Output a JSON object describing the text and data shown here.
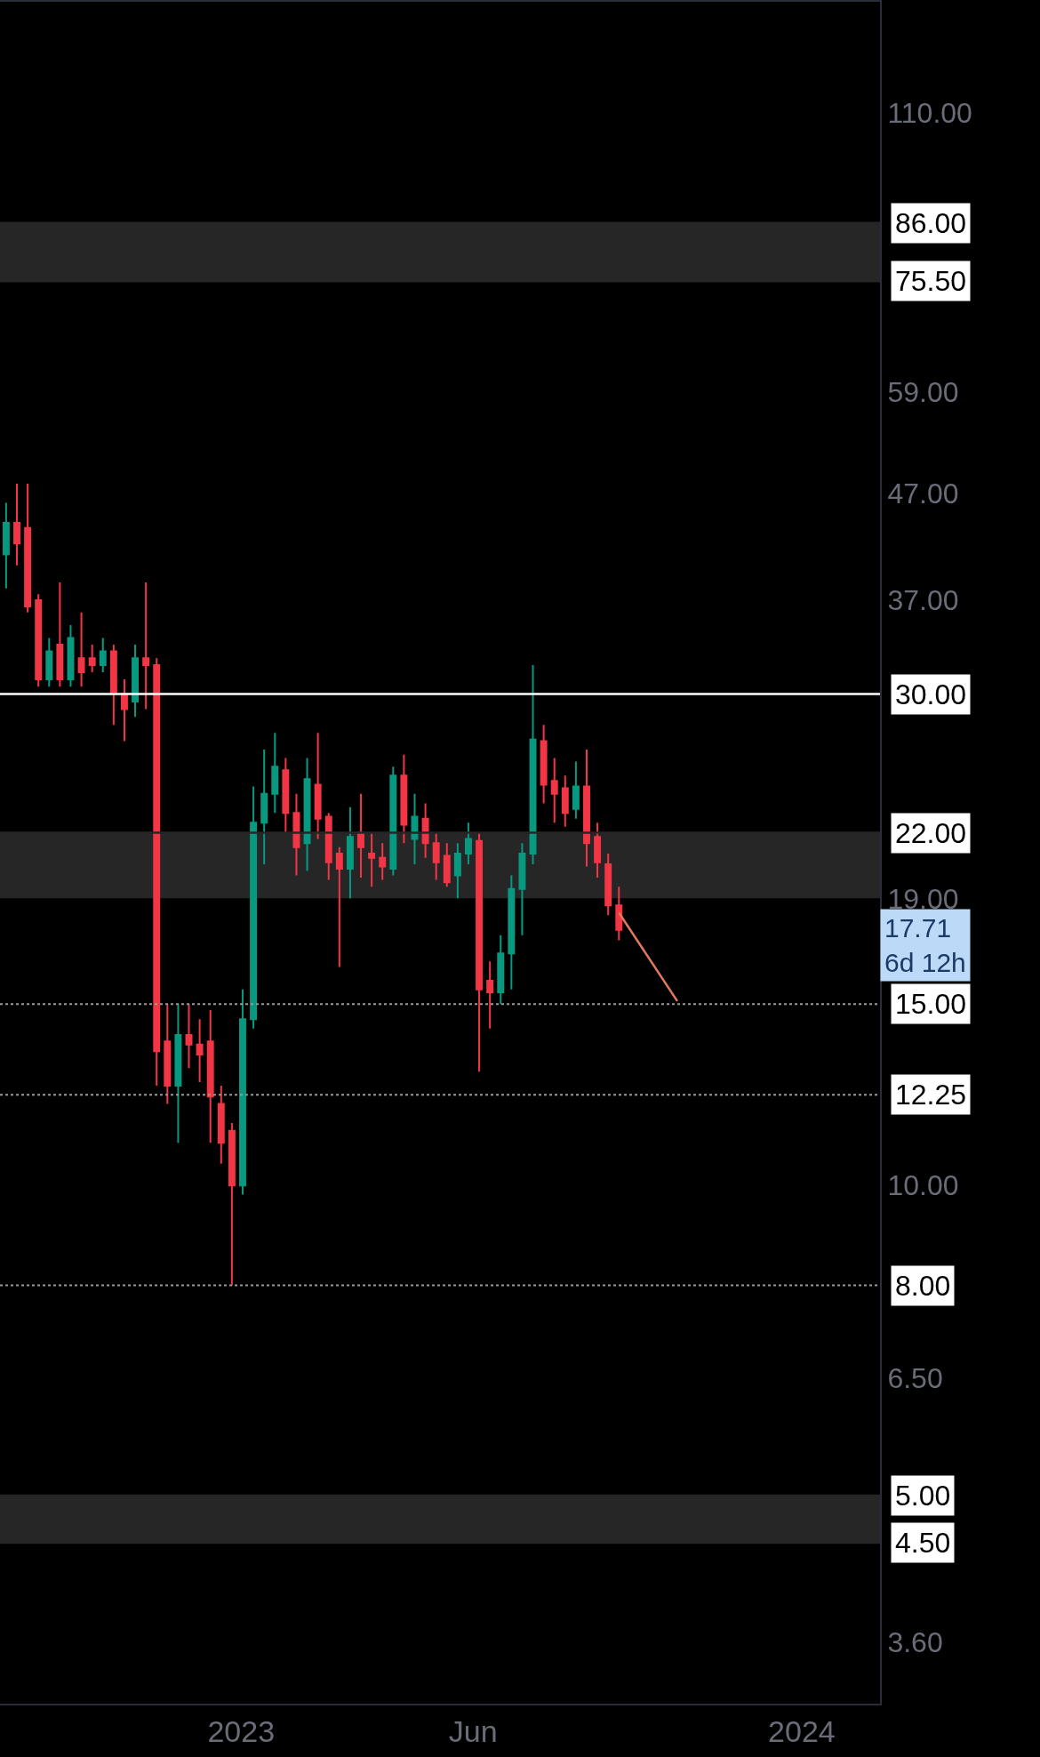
{
  "chart_data": {
    "type": "candlestick",
    "x": [
      "2022-08-01",
      "2022-08-08",
      "2022-08-15",
      "2022-08-22",
      "2022-08-29",
      "2022-09-05",
      "2022-09-12",
      "2022-09-19",
      "2022-09-26",
      "2022-10-03",
      "2022-10-10",
      "2022-10-17",
      "2022-10-24",
      "2022-10-31",
      "2022-11-07",
      "2022-11-14",
      "2022-11-21",
      "2022-11-28",
      "2022-12-05",
      "2022-12-12",
      "2022-12-19",
      "2022-12-26",
      "2023-01-02",
      "2023-01-09",
      "2023-01-16",
      "2023-01-23",
      "2023-01-30",
      "2023-02-06",
      "2023-02-13",
      "2023-02-20",
      "2023-02-27",
      "2023-03-06",
      "2023-03-13",
      "2023-03-20",
      "2023-03-27",
      "2023-04-03",
      "2023-04-10",
      "2023-04-17",
      "2023-04-24",
      "2023-05-01",
      "2023-05-08",
      "2023-05-15",
      "2023-05-22",
      "2023-05-29",
      "2023-06-05",
      "2023-06-12",
      "2023-06-19",
      "2023-06-26",
      "2023-07-03",
      "2023-07-10",
      "2023-07-17",
      "2023-07-24",
      "2023-07-31",
      "2023-08-07",
      "2023-08-14",
      "2023-08-21",
      "2023-08-28",
      "2023-09-04"
    ],
    "ohlc": [
      [
        41,
        46,
        38,
        44
      ],
      [
        44,
        48,
        40,
        42
      ],
      [
        43.5,
        48,
        36,
        36.5
      ],
      [
        37,
        37.5,
        30.5,
        31
      ],
      [
        31,
        34,
        30.5,
        33
      ],
      [
        33.5,
        38.5,
        30.5,
        31
      ],
      [
        31,
        35,
        30.5,
        34
      ],
      [
        32.5,
        36,
        30.5,
        31.5
      ],
      [
        32.5,
        33.5,
        31.5,
        32
      ],
      [
        32,
        34,
        31.5,
        33
      ],
      [
        33,
        33.5,
        28,
        30
      ],
      [
        30,
        31,
        27,
        29
      ],
      [
        29.5,
        33.5,
        28.5,
        32.5
      ],
      [
        32.5,
        38.5,
        29,
        32
      ],
      [
        32,
        32.5,
        12.5,
        13.5
      ],
      [
        13.8,
        15,
        12,
        12.5
      ],
      [
        12.5,
        15,
        11,
        14
      ],
      [
        14,
        15,
        13,
        13.7
      ],
      [
        13.7,
        14.5,
        12.6,
        13.4
      ],
      [
        13.8,
        14.8,
        11,
        12.2
      ],
      [
        12,
        12.5,
        10.5,
        11
      ],
      [
        11.3,
        11.5,
        8,
        10
      ],
      [
        10,
        15.5,
        9.8,
        14.5
      ],
      [
        14.5,
        24.4,
        14.2,
        22.5
      ],
      [
        22.5,
        26.5,
        20.5,
        24
      ],
      [
        24,
        27.5,
        23,
        25.5
      ],
      [
        25.3,
        26,
        22,
        23
      ],
      [
        23,
        24,
        20,
        21.3
      ],
      [
        21.5,
        26,
        20.2,
        24.8
      ],
      [
        24.5,
        27.5,
        21.7,
        22.7
      ],
      [
        22.8,
        23,
        19.8,
        20.6
      ],
      [
        21,
        21.3,
        16.3,
        20.3
      ],
      [
        20.3,
        23.3,
        19,
        21.8
      ],
      [
        22,
        24,
        19.9,
        21.3
      ],
      [
        21,
        22,
        19.5,
        20.8
      ],
      [
        20.8,
        21.5,
        19.8,
        20.4
      ],
      [
        20.3,
        25.5,
        20,
        25
      ],
      [
        25,
        26.2,
        21.5,
        22.4
      ],
      [
        21.7,
        24,
        20.5,
        22.8
      ],
      [
        22.7,
        23.5,
        20.8,
        21.5
      ],
      [
        21.5,
        22,
        19.8,
        20.6
      ],
      [
        20.9,
        21.5,
        19.5,
        19.7
      ],
      [
        20,
        21.5,
        19,
        21
      ],
      [
        21,
        22.5,
        20.5,
        21.7
      ],
      [
        21.6,
        22,
        12.9,
        15.5
      ],
      [
        15.8,
        16.5,
        14.2,
        15.4
      ],
      [
        15.4,
        17.5,
        15,
        16.8
      ],
      [
        16.8,
        20,
        15.5,
        19.4
      ],
      [
        19.4,
        21.5,
        17.5,
        21
      ],
      [
        21,
        32,
        20.5,
        27.1
      ],
      [
        27,
        28,
        23.5,
        24.5
      ],
      [
        24.7,
        26,
        22.5,
        24
      ],
      [
        24.3,
        25,
        22.3,
        23
      ],
      [
        23.2,
        25.8,
        22.7,
        24.4
      ],
      [
        24.4,
        26.5,
        20.4,
        21.5
      ],
      [
        21.8,
        22.5,
        19.9,
        20.6
      ],
      [
        20.5,
        21,
        18.3,
        18.7
      ],
      [
        18.7,
        19.5,
        17.3,
        17.71
      ]
    ],
    "series": [
      {
        "type": "line",
        "color": "#e07b5a",
        "x": [
          "2023-09-04",
          "2023-10-12"
        ],
        "values": [
          18.4,
          15.1
        ]
      }
    ],
    "log": true,
    "grid": false,
    "xlim": [
      "2022-07-28",
      "2024-02-21"
    ],
    "xticks": [
      {
        "value": "2023-01-01",
        "label": "2023"
      },
      {
        "value": "2023-06-01",
        "label": "Jun"
      },
      {
        "value": "2024-01-01",
        "label": "2024"
      }
    ],
    "ylim": [
      3.14,
      141
    ],
    "yticks": [
      {
        "value": 110,
        "label": "110.00"
      },
      {
        "value": 59,
        "label": "59.00"
      },
      {
        "value": 47,
        "label": "47.00"
      },
      {
        "value": 37,
        "label": "37.00"
      },
      {
        "value": 19,
        "label": "19.00"
      },
      {
        "value": 10,
        "label": "10.00"
      },
      {
        "value": 6.5,
        "label": "6.50"
      },
      {
        "value": 3.6,
        "label": "3.60"
      }
    ],
    "ref_lines": [
      {
        "axis": "y",
        "value": 30,
        "label": "30.00",
        "color": "#ffffff",
        "line_style": "solid"
      },
      {
        "axis": "y",
        "value": 15,
        "label": "15.00",
        "color": "#9a9a9a",
        "line_style": "dotted"
      },
      {
        "axis": "y",
        "value": 12.25,
        "label": "12.25",
        "color": "#9a9a9a",
        "line_style": "dotted"
      },
      {
        "axis": "y",
        "value": 8,
        "label": "8.00",
        "color": "#9a9a9a",
        "line_style": "dotted"
      },
      {
        "axis": "y",
        "value": 86,
        "label": "86.00",
        "color": "#262626",
        "line_style": "solid"
      },
      {
        "axis": "y",
        "value": 75.5,
        "label": "75.50",
        "color": "#262626",
        "line_style": "solid"
      },
      {
        "axis": "y",
        "value": 22,
        "label": "22.00",
        "color": "#262626",
        "line_style": "solid"
      },
      {
        "axis": "y",
        "value": 5,
        "label": "5.00",
        "color": "#262626",
        "line_style": "solid"
      },
      {
        "axis": "y",
        "value": 4.5,
        "label": "4.50",
        "color": "#262626",
        "line_style": "solid"
      }
    ],
    "bands": [
      {
        "axis": "y",
        "from": 75.5,
        "to": 86,
        "color": "#262626"
      },
      {
        "axis": "y",
        "from": 19,
        "to": 22,
        "color": "#262626"
      },
      {
        "axis": "y",
        "from": 4.5,
        "to": 5,
        "color": "#262626"
      }
    ],
    "annotations": [
      "17.71\n6d 12h"
    ]
  }
}
